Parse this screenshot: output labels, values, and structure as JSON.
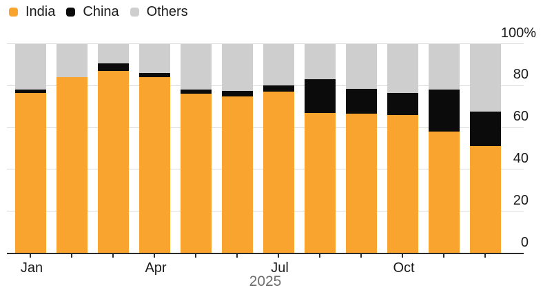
{
  "legend": {
    "items": [
      {
        "label": "India",
        "color": "#FAA430"
      },
      {
        "label": "China",
        "color": "#0b0b0b"
      },
      {
        "label": "Others",
        "color": "#cecece"
      }
    ]
  },
  "chart_data": {
    "type": "bar",
    "stacked": true,
    "unit": "%",
    "categories": [
      "Jan",
      "Feb",
      "Mar",
      "Apr",
      "May",
      "Jun",
      "Jul",
      "Aug",
      "Sep",
      "Oct",
      "Nov",
      "Dec"
    ],
    "series": [
      {
        "name": "India",
        "color": "#FAA430",
        "values": [
          76.5,
          84,
          87,
          84,
          76,
          75,
          77,
          67,
          66.5,
          66,
          58,
          51
        ]
      },
      {
        "name": "China",
        "color": "#0b0b0b",
        "values": [
          1.5,
          0,
          3.5,
          2,
          2,
          2.5,
          3,
          16,
          12,
          10.5,
          20,
          16.5
        ]
      },
      {
        "name": "Others",
        "color": "#cecece",
        "values": [
          22,
          16,
          9.5,
          14,
          22,
          22.5,
          20,
          17,
          21.5,
          23.5,
          22,
          32.5
        ]
      }
    ],
    "y_axis": {
      "ticks": [
        "0",
        "20",
        "40",
        "60",
        "80"
      ],
      "top_label": "100%",
      "min": 0,
      "max": 100,
      "position": "right"
    },
    "x_axis": {
      "labeled_months": [
        "Jan",
        "Apr",
        "Jul",
        "Oct"
      ],
      "axis_label": "2025"
    },
    "grid": true,
    "legend_position": "top-left",
    "colors": {
      "gridline": "#dbdbdb",
      "axis": "#2b2b2b",
      "tick_text": "#1a1a1a",
      "year_text": "#6e6e6e",
      "background": "#ffffff"
    }
  }
}
